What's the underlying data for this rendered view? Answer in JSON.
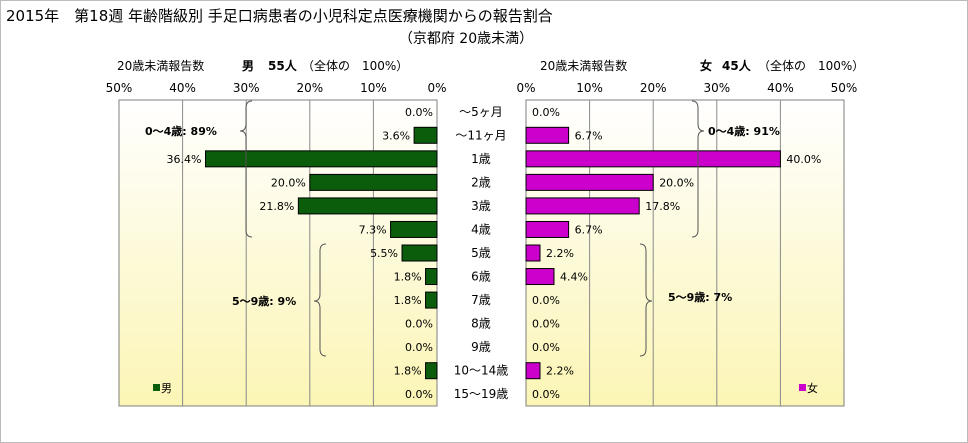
{
  "title": "2015年　第18週 年齢階級別 手足口病患者の小児科定点医療機関からの報告割合",
  "subtitle": "（京都府 20歳未満）",
  "colors": {
    "male": "#0b5c0b",
    "female": "#cc00cc",
    "bg_top": "#ffffff",
    "bg_bottom": "#fbf5b5"
  },
  "chart_data": [
    {
      "type": "bar",
      "orientation": "horizontal",
      "side": "left",
      "header_label": "20歳未満報告数",
      "header_sex": "男",
      "header_count": "55人",
      "header_note": "（全体の　100%）",
      "legend": "男",
      "xlim": [
        0,
        50
      ],
      "ticks": [
        "50%",
        "40%",
        "30%",
        "20%",
        "10%",
        "0%"
      ],
      "categories": [
        "～5ヶ月",
        "～11ヶ月",
        "1歳",
        "2歳",
        "3歳",
        "4歳",
        "5歳",
        "6歳",
        "7歳",
        "8歳",
        "9歳",
        "10～14歳",
        "15～19歳"
      ],
      "values": [
        0.0,
        3.6,
        36.4,
        20.0,
        21.8,
        7.3,
        5.5,
        1.8,
        1.8,
        0.0,
        0.0,
        1.8,
        0.0
      ],
      "labels": [
        "0.0%",
        "3.6%",
        "36.4%",
        "20.0%",
        "21.8%",
        "7.3%",
        "5.5%",
        "1.8%",
        "1.8%",
        "0.0%",
        "0.0%",
        "1.8%",
        "0.0%"
      ],
      "annotations": [
        "0～4歳: 89%",
        "5～9歳: 9%"
      ]
    },
    {
      "type": "bar",
      "orientation": "horizontal",
      "side": "right",
      "header_label": "20歳未満報告数",
      "header_sex": "女",
      "header_count": "45人",
      "header_note": "（全体の　100%）",
      "legend": "女",
      "xlim": [
        0,
        50
      ],
      "ticks": [
        "0%",
        "10%",
        "20%",
        "30%",
        "40%",
        "50%"
      ],
      "categories": [
        "～5ヶ月",
        "～11ヶ月",
        "1歳",
        "2歳",
        "3歳",
        "4歳",
        "5歳",
        "6歳",
        "7歳",
        "8歳",
        "9歳",
        "10～14歳",
        "15～19歳"
      ],
      "values": [
        0.0,
        6.7,
        40.0,
        20.0,
        17.8,
        6.7,
        2.2,
        4.4,
        0.0,
        0.0,
        0.0,
        2.2,
        0.0
      ],
      "labels": [
        "0.0%",
        "6.7%",
        "40.0%",
        "20.0%",
        "17.8%",
        "6.7%",
        "2.2%",
        "4.4%",
        "0.0%",
        "0.0%",
        "0.0%",
        "2.2%",
        "0.0%"
      ],
      "annotations": [
        "0～4歳: 91%",
        "5～9歳: 7%"
      ]
    }
  ]
}
